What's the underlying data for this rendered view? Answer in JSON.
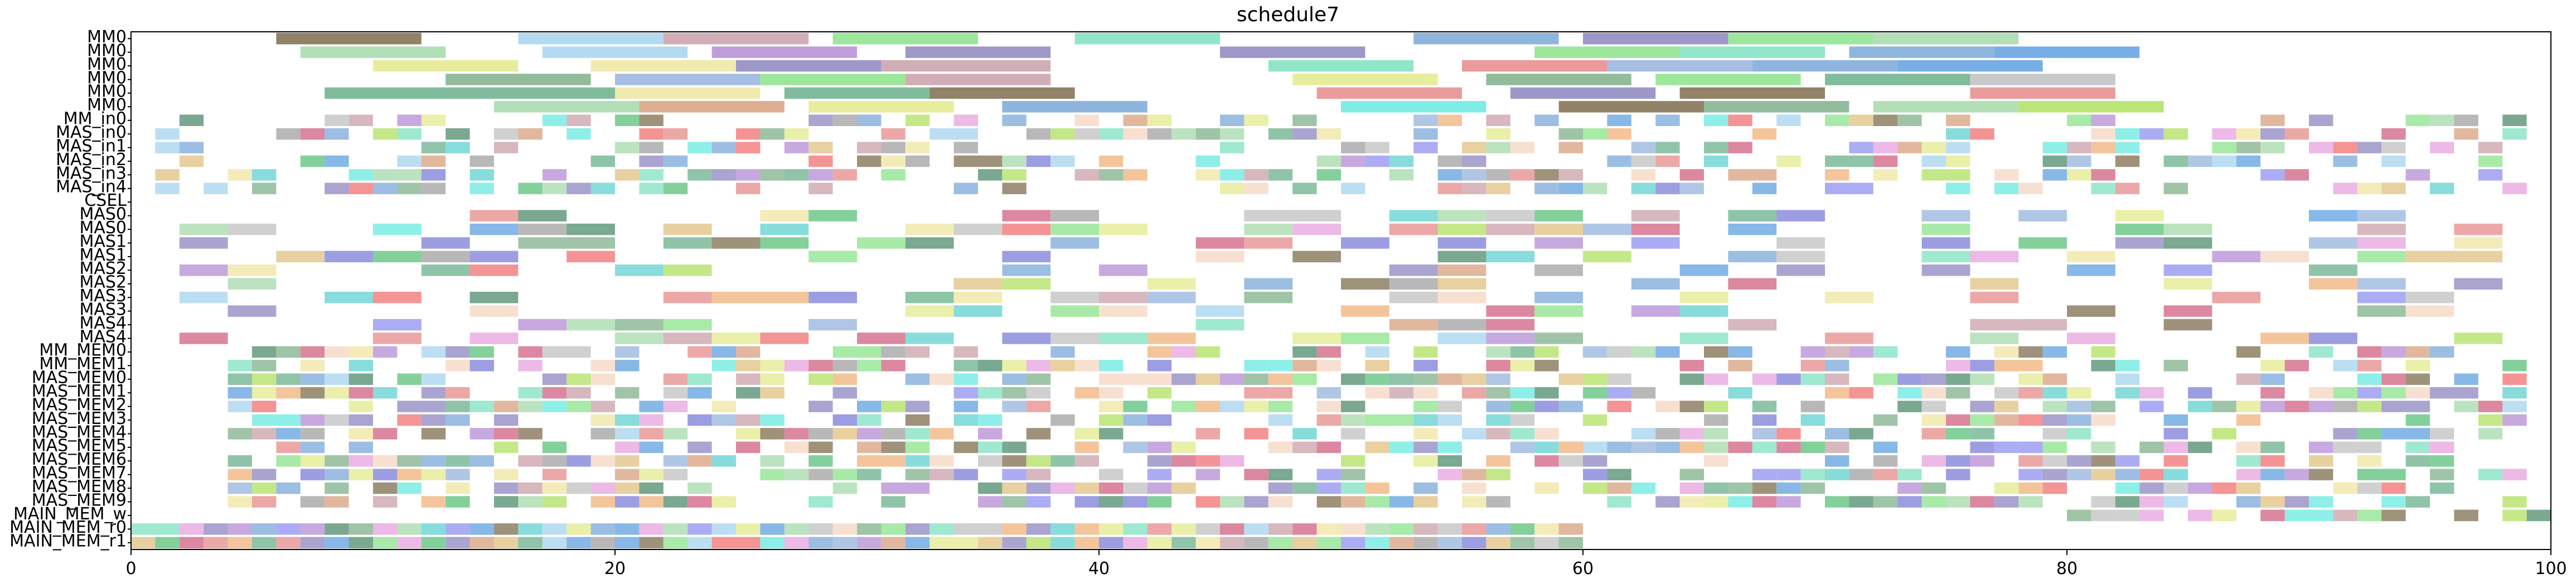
{
  "chart_data": {
    "type": "gantt",
    "title": "schedule7",
    "xlabel": "",
    "ylabel": "",
    "xlim": [
      0,
      100
    ],
    "x_ticks": [
      "0",
      "20",
      "40",
      "60",
      "80",
      "100"
    ],
    "x_tick_values": [
      0,
      20,
      40,
      60,
      80,
      100
    ],
    "grid": false,
    "rows": [
      "MM0",
      "MM0",
      "MM0",
      "MM0",
      "MM0",
      "MM0",
      "MM_in0",
      "MAS_in0",
      "MAS_in1",
      "MAS_in2",
      "MAS_in3",
      "MAS_in4",
      "CSEL",
      "MAS0",
      "MAS0",
      "MAS1",
      "MAS1",
      "MAS2",
      "MAS2",
      "MAS3",
      "MAS3",
      "MAS4",
      "MAS4",
      "MM_MEM0",
      "MM_MEM1",
      "MAS_MEM0",
      "MAS_MEM1",
      "MAS_MEM2",
      "MAS_MEM3",
      "MAS_MEM4",
      "MAS_MEM5",
      "MAS_MEM6",
      "MAS_MEM7",
      "MAS_MEM8",
      "MAS_MEM9",
      "MAIN_MEM_w",
      "MAIN_MEM_r0",
      "MAIN_MEM_r1"
    ],
    "palette": [
      "#7f6d4e",
      "#a5d9a9",
      "#e3ea8c",
      "#7fb08a",
      "#6ab08b",
      "#a6d3ee",
      "#c9a0a8",
      "#8be38a",
      "#7ee2c0",
      "#7aa8d8",
      "#8d86c0",
      "#5fa0e0",
      "#b48cd4",
      "#e58b8a",
      "#e7a2dd",
      "#96b3dc",
      "#efe6a0",
      "#4d8b6b",
      "#d7a07e",
      "#68e9e0",
      "#f0b27a",
      "#a0a0a0",
      "#f5d5c0",
      "#7c7cd8",
      "#e0c080",
      "#5ac07a",
      "#d06080",
      "#b0e060",
      "#f07070",
      "#60d0d0",
      "#9090f0",
      "#c0c0c0"
    ],
    "mm_bars": [
      {
        "row": 0,
        "start": 6.0,
        "end": 12.0,
        "c": 0
      },
      {
        "row": 0,
        "start": 16.0,
        "end": 22.0,
        "c": 5
      },
      {
        "row": 0,
        "start": 22.0,
        "end": 28.0,
        "c": 6
      },
      {
        "row": 0,
        "start": 29.0,
        "end": 35.0,
        "c": 7
      },
      {
        "row": 0,
        "start": 39.0,
        "end": 45.0,
        "c": 8
      },
      {
        "row": 0,
        "start": 53.0,
        "end": 59.0,
        "c": 9
      },
      {
        "row": 0,
        "start": 60.0,
        "end": 66.0,
        "c": 10
      },
      {
        "row": 0,
        "start": 66.0,
        "end": 72.0,
        "c": 7
      },
      {
        "row": 0,
        "start": 72.0,
        "end": 78.0,
        "c": 1
      },
      {
        "row": 1,
        "start": 7.0,
        "end": 13.0,
        "c": 1
      },
      {
        "row": 1,
        "start": 17.0,
        "end": 23.0,
        "c": 5
      },
      {
        "row": 1,
        "start": 24.0,
        "end": 30.0,
        "c": 12
      },
      {
        "row": 1,
        "start": 32.0,
        "end": 38.0,
        "c": 10
      },
      {
        "row": 1,
        "start": 45.0,
        "end": 51.0,
        "c": 10
      },
      {
        "row": 1,
        "start": 58.0,
        "end": 64.0,
        "c": 7
      },
      {
        "row": 1,
        "start": 64.0,
        "end": 70.0,
        "c": 8
      },
      {
        "row": 1,
        "start": 71.0,
        "end": 77.0,
        "c": 9
      },
      {
        "row": 1,
        "start": 77.0,
        "end": 83.0,
        "c": 11
      },
      {
        "row": 2,
        "start": 10.0,
        "end": 16.0,
        "c": 2
      },
      {
        "row": 2,
        "start": 19.0,
        "end": 25.0,
        "c": 16
      },
      {
        "row": 2,
        "start": 25.0,
        "end": 31.0,
        "c": 10
      },
      {
        "row": 2,
        "start": 31.0,
        "end": 38.0,
        "c": 6
      },
      {
        "row": 2,
        "start": 47.0,
        "end": 53.0,
        "c": 8
      },
      {
        "row": 2,
        "start": 55.0,
        "end": 61.0,
        "c": 13
      },
      {
        "row": 2,
        "start": 61.0,
        "end": 67.0,
        "c": 15
      },
      {
        "row": 2,
        "start": 67.0,
        "end": 73.0,
        "c": 9
      },
      {
        "row": 2,
        "start": 73.0,
        "end": 79.0,
        "c": 11
      },
      {
        "row": 3,
        "start": 13.0,
        "end": 19.0,
        "c": 3
      },
      {
        "row": 3,
        "start": 20.0,
        "end": 26.0,
        "c": 15
      },
      {
        "row": 3,
        "start": 26.0,
        "end": 32.0,
        "c": 7
      },
      {
        "row": 3,
        "start": 32.0,
        "end": 38.0,
        "c": 6
      },
      {
        "row": 3,
        "start": 48.0,
        "end": 54.0,
        "c": 2
      },
      {
        "row": 3,
        "start": 56.0,
        "end": 62.0,
        "c": 3
      },
      {
        "row": 3,
        "start": 63.0,
        "end": 69.0,
        "c": 7
      },
      {
        "row": 3,
        "start": 70.0,
        "end": 76.0,
        "c": 4
      },
      {
        "row": 3,
        "start": 76.0,
        "end": 82.0,
        "c": 31
      },
      {
        "row": 4,
        "start": 8.0,
        "end": 14.0,
        "c": 4
      },
      {
        "row": 4,
        "start": 14.0,
        "end": 20.0,
        "c": 4
      },
      {
        "row": 4,
        "start": 20.0,
        "end": 26.0,
        "c": 16
      },
      {
        "row": 4,
        "start": 27.0,
        "end": 33.0,
        "c": 4
      },
      {
        "row": 4,
        "start": 33.0,
        "end": 39.0,
        "c": 0
      },
      {
        "row": 4,
        "start": 49.0,
        "end": 55.0,
        "c": 13
      },
      {
        "row": 4,
        "start": 57.0,
        "end": 63.0,
        "c": 10
      },
      {
        "row": 4,
        "start": 64.0,
        "end": 70.0,
        "c": 0
      },
      {
        "row": 4,
        "start": 76.0,
        "end": 82.0,
        "c": 13
      },
      {
        "row": 5,
        "start": 15.0,
        "end": 21.0,
        "c": 1
      },
      {
        "row": 5,
        "start": 21.0,
        "end": 27.0,
        "c": 18
      },
      {
        "row": 5,
        "start": 28.0,
        "end": 34.0,
        "c": 2
      },
      {
        "row": 5,
        "start": 36.0,
        "end": 42.0,
        "c": 9
      },
      {
        "row": 5,
        "start": 50.0,
        "end": 56.0,
        "c": 19
      },
      {
        "row": 5,
        "start": 59.0,
        "end": 65.0,
        "c": 0
      },
      {
        "row": 5,
        "start": 65.0,
        "end": 71.0,
        "c": 3
      },
      {
        "row": 5,
        "start": 72.0,
        "end": 78.0,
        "c": 1
      },
      {
        "row": 5,
        "start": 78.0,
        "end": 84.0,
        "c": 27
      }
    ]
  }
}
